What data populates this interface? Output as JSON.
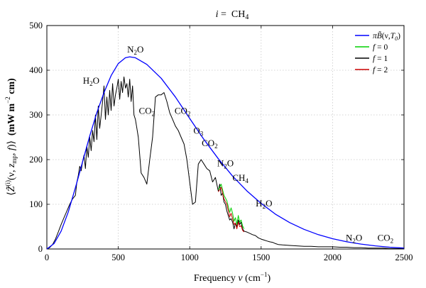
{
  "chart_data": {
    "type": "line",
    "title": "i =  CH4",
    "title_parts": {
      "prefix": "i",
      "equals": " =  ",
      "species": "CH",
      "species_sub": "4"
    },
    "xlabel": "Frequency ν (cm⁻¹)",
    "xlabel_parts": {
      "main": "Frequency ",
      "var": "ν",
      "unit_open": " (cm",
      "unit_exp": "−1",
      "unit_close": ")"
    },
    "ylabel": "⟨Z̃(i)(ν, zmp, f)⟩  (mW m⁻² cm)",
    "ylabel_parts": {
      "open": "⟨",
      "Z": "Z̃",
      "sup": "(i)",
      "args1": "(ν, ",
      "z": "z",
      "zsub": "mp",
      "args2": ", ",
      "f": "f",
      "args3": ")⟩  ",
      "units": "(mW m",
      "units_exp": "−2",
      "units_end": " cm)"
    },
    "xlim": [
      0,
      2500
    ],
    "ylim": [
      0,
      500
    ],
    "xticks": [
      0,
      500,
      1000,
      1500,
      2000,
      2500
    ],
    "yticks": [
      0,
      100,
      200,
      300,
      400,
      500
    ],
    "grid": true,
    "legend_position": "top-right",
    "series": [
      {
        "name": "πB̃(ν,T0)",
        "color": "#0000ff",
        "x": [
          0,
          50,
          100,
          150,
          200,
          250,
          300,
          350,
          400,
          450,
          500,
          550,
          580,
          620,
          700,
          800,
          900,
          1000,
          1100,
          1200,
          1300,
          1400,
          1500,
          1600,
          1700,
          1800,
          1900,
          2000,
          2100,
          2200,
          2300,
          2400,
          2500
        ],
        "values": [
          0,
          12,
          40,
          83,
          137,
          195,
          253,
          305,
          350,
          388,
          415,
          428,
          430,
          428,
          413,
          382,
          340,
          292,
          245,
          202,
          163,
          130,
          102,
          78,
          59,
          44,
          32,
          23,
          16,
          11,
          7,
          4,
          2
        ]
      },
      {
        "name": "f = 0",
        "color": "#00d000",
        "x": [
          1200,
          1220,
          1240,
          1260,
          1280,
          1290,
          1300,
          1310,
          1320,
          1330,
          1340,
          1350,
          1360,
          1370,
          1380
        ],
        "values": [
          132,
          145,
          120,
          108,
          82,
          92,
          80,
          62,
          70,
          55,
          75,
          60,
          65,
          52,
          45
        ]
      },
      {
        "name": "f = 1",
        "color": "#000000",
        "x": [
          0,
          20,
          40,
          60,
          80,
          100,
          120,
          140,
          160,
          180,
          200,
          210,
          220,
          230,
          240,
          250,
          260,
          270,
          280,
          290,
          300,
          310,
          320,
          330,
          340,
          350,
          360,
          370,
          380,
          390,
          400,
          410,
          420,
          430,
          440,
          450,
          460,
          470,
          480,
          490,
          500,
          510,
          520,
          530,
          540,
          550,
          560,
          570,
          580,
          590,
          600,
          610,
          620,
          630,
          640,
          660,
          680,
          700,
          720,
          740,
          760,
          780,
          800,
          820,
          840,
          860,
          880,
          900,
          920,
          940,
          960,
          980,
          1000,
          1020,
          1040,
          1060,
          1080,
          1100,
          1120,
          1140,
          1160,
          1180,
          1200,
          1210,
          1220,
          1230,
          1240,
          1250,
          1260,
          1270,
          1280,
          1290,
          1300,
          1310,
          1320,
          1330,
          1340,
          1350,
          1360,
          1370,
          1380,
          1400,
          1420,
          1440,
          1460,
          1480,
          1500,
          1520,
          1540,
          1560,
          1580,
          1600,
          1620,
          1650,
          1700,
          1750,
          1800,
          1850,
          1900,
          1950,
          2000,
          2050,
          2100,
          2150,
          2200,
          2250,
          2300,
          2350,
          2400,
          2450,
          2500
        ],
        "values": [
          0,
          3,
          10,
          22,
          38,
          55,
          70,
          85,
          100,
          112,
          120,
          150,
          165,
          185,
          175,
          195,
          210,
          180,
          230,
          205,
          250,
          220,
          265,
          240,
          300,
          245,
          320,
          270,
          300,
          330,
          365,
          290,
          340,
          300,
          355,
          310,
          370,
          320,
          345,
          360,
          380,
          335,
          375,
          350,
          385,
          360,
          370,
          340,
          380,
          330,
          365,
          300,
          290,
          270,
          250,
          170,
          160,
          145,
          200,
          250,
          340,
          345,
          345,
          350,
          330,
          305,
          290,
          275,
          265,
          250,
          235,
          200,
          150,
          100,
          105,
          190,
          200,
          190,
          180,
          175,
          150,
          160,
          130,
          145,
          120,
          125,
          105,
          100,
          85,
          75,
          65,
          68,
          60,
          45,
          58,
          50,
          65,
          55,
          60,
          45,
          40,
          38,
          35,
          32,
          30,
          25,
          22,
          20,
          18,
          16,
          15,
          12,
          10,
          9,
          8,
          7,
          6,
          6,
          5,
          5,
          5,
          4,
          4,
          3,
          3,
          2,
          2,
          2,
          1,
          1,
          1
        ]
      },
      {
        "name": "f = 2",
        "color": "#cc0000",
        "x": [
          1200,
          1220,
          1240,
          1260,
          1280,
          1290,
          1300,
          1310,
          1320,
          1330,
          1340,
          1350,
          1360,
          1370,
          1380
        ],
        "values": [
          128,
          138,
          112,
          100,
          72,
          80,
          68,
          55,
          58,
          45,
          60,
          50,
          52,
          42,
          38
        ]
      }
    ],
    "annotations": [
      {
        "base": "N",
        "sub": "2",
        "tail": "O",
        "x": 620,
        "y": 440
      },
      {
        "base": "H",
        "sub": "2",
        "tail": "O",
        "x": 310,
        "y": 370
      },
      {
        "base": "CO",
        "sub": "2",
        "tail": "",
        "x": 700,
        "y": 302
      },
      {
        "base": "CO",
        "sub": "2",
        "tail": "",
        "x": 950,
        "y": 302
      },
      {
        "base": "O",
        "sub": "3",
        "tail": "",
        "x": 1060,
        "y": 258
      },
      {
        "base": "CO",
        "sub": "2",
        "tail": "",
        "x": 1140,
        "y": 230
      },
      {
        "base": "N",
        "sub": "2",
        "tail": "O",
        "x": 1250,
        "y": 185
      },
      {
        "base": "CH",
        "sub": "4",
        "tail": "",
        "x": 1355,
        "y": 152
      },
      {
        "base": "H",
        "sub": "2",
        "tail": "O",
        "x": 1520,
        "y": 95
      },
      {
        "base": "N",
        "sub": "2",
        "tail": "O",
        "x": 2150,
        "y": 18
      },
      {
        "base": "CO",
        "sub": "2",
        "tail": "",
        "x": 2370,
        "y": 18
      }
    ],
    "legend_labels": [
      {
        "pre": "π",
        "main": "B̃",
        "args": "(ν,",
        "T": "T",
        "Tsub": "0",
        "close": ")"
      },
      {
        "pre": "",
        "main": "f",
        "args": " = 0",
        "T": "",
        "Tsub": "",
        "close": ""
      },
      {
        "pre": "",
        "main": "f",
        "args": " = 1",
        "T": "",
        "Tsub": "",
        "close": ""
      },
      {
        "pre": "",
        "main": "f",
        "args": " = 2",
        "T": "",
        "Tsub": "",
        "close": ""
      }
    ]
  }
}
